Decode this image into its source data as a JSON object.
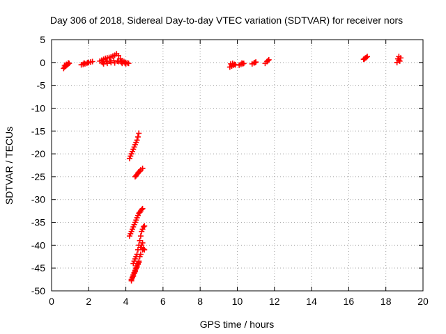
{
  "chart_data": {
    "type": "scatter",
    "title": "Day 306 of 2018, Sidereal Day-to-day VTEC variation (SDTVAR) for receiver nors",
    "xlabel": "GPS time / hours",
    "ylabel": "SDTVAR / TECUs",
    "xlim": [
      0,
      20
    ],
    "ylim": [
      -50,
      5
    ],
    "xticks": [
      "0",
      "2",
      "4",
      "6",
      "8",
      "10",
      "12",
      "14",
      "16",
      "18",
      "20"
    ],
    "yticks": [
      "5",
      "0",
      "-5",
      "-10",
      "-15",
      "-20",
      "-25",
      "-30",
      "-35",
      "-40",
      "-45",
      "-50"
    ],
    "grid": true,
    "marker": "plus",
    "point_color": "#ff0000",
    "series": [
      {
        "x": [
          0.65,
          0.7,
          0.75,
          0.8,
          0.85,
          0.9,
          0.95,
          0.7,
          0.8,
          0.9,
          1.6,
          1.7,
          1.8,
          1.9,
          2.0,
          2.1,
          2.2,
          1.75,
          1.95,
          2.6,
          2.7,
          2.8,
          2.9,
          3.0,
          3.1,
          3.2,
          3.3,
          3.4,
          3.5,
          3.6,
          3.7,
          3.8,
          3.9,
          4.0,
          4.1,
          4.15,
          2.75,
          2.95,
          3.15,
          3.35,
          3.55,
          3.75,
          3.95,
          2.8,
          3.0,
          3.2,
          3.4,
          3.6,
          3.8,
          4.0,
          4.2,
          4.3,
          4.4,
          4.5,
          4.6,
          4.7,
          4.25,
          4.35,
          4.45,
          4.55,
          4.65,
          4.5,
          4.6,
          4.7,
          4.8,
          4.9,
          4.55,
          4.65,
          4.75,
          4.2,
          4.3,
          4.4,
          4.5,
          4.6,
          4.7,
          4.8,
          4.9,
          4.25,
          4.35,
          4.45,
          4.55,
          4.65,
          4.75,
          4.85,
          4.4,
          4.5,
          4.6,
          4.7,
          4.8,
          4.9,
          5.0,
          4.45,
          4.55,
          4.65,
          4.75,
          4.85,
          4.95,
          4.3,
          4.4,
          4.5,
          4.6,
          4.7,
          4.8,
          4.9,
          4.35,
          4.45,
          4.55,
          4.65,
          4.75,
          4.8,
          4.85,
          4.9,
          4.95,
          5.0,
          4.3,
          4.35,
          4.4,
          4.45,
          4.5,
          4.55,
          4.6,
          4.65,
          4.7,
          9.6,
          9.7,
          9.8,
          9.9,
          9.65,
          9.75,
          9.85,
          10.1,
          10.2,
          10.3,
          10.35,
          10.25,
          10.8,
          10.9,
          11.0,
          10.95,
          11.5,
          11.6,
          11.7,
          11.65,
          16.8,
          16.9,
          17.0,
          16.95,
          16.85,
          18.6,
          18.7,
          18.8,
          18.65,
          18.75,
          18.7
        ],
        "y": [
          -1.3,
          -1.0,
          -0.8,
          -0.6,
          -0.5,
          -0.3,
          -0.2,
          -0.6,
          -0.4,
          -0.1,
          -0.5,
          -0.4,
          -0.3,
          -0.2,
          0.0,
          0.1,
          0.2,
          -0.1,
          0.0,
          0.3,
          0.5,
          0.7,
          0.9,
          1.0,
          1.1,
          1.2,
          1.4,
          1.6,
          1.9,
          1.5,
          0.8,
          0.4,
          0.2,
          0.0,
          -0.1,
          -0.2,
          0.0,
          0.2,
          0.3,
          0.4,
          0.3,
          0.1,
          -0.1,
          -0.3,
          -0.2,
          0.0,
          -0.1,
          0.2,
          -0.2,
          -0.3,
          -21.0,
          -20.0,
          -19.0,
          -18.0,
          -17.0,
          -15.5,
          -20.5,
          -19.5,
          -18.5,
          -17.5,
          -16.3,
          -25.0,
          -24.5,
          -24.0,
          -23.5,
          -23.2,
          -24.8,
          -24.2,
          -23.8,
          -38.0,
          -37.0,
          -36.0,
          -35.0,
          -34.0,
          -33.0,
          -32.5,
          -32.0,
          -37.5,
          -36.5,
          -35.5,
          -34.5,
          -33.5,
          -32.8,
          -32.2,
          -44.0,
          -43.0,
          -42.0,
          -40.0,
          -38.0,
          -36.5,
          -35.8,
          -43.5,
          -42.5,
          -41.0,
          -39.0,
          -37.0,
          -36.0,
          -47.5,
          -46.5,
          -45.5,
          -44.5,
          -43.5,
          -42.0,
          -41.0,
          -47.0,
          -46.0,
          -45.0,
          -44.0,
          -42.5,
          -40.5,
          -40.0,
          -39.5,
          -40.8,
          -41.0,
          -47.8,
          -47.2,
          -46.8,
          -46.2,
          -45.8,
          -45.2,
          -44.8,
          -44.2,
          -43.8,
          -1.0,
          -0.8,
          -0.6,
          -0.5,
          -0.3,
          -0.2,
          -0.4,
          -0.6,
          -0.4,
          -0.3,
          -0.2,
          -0.1,
          -0.3,
          -0.1,
          0.1,
          0.0,
          -0.2,
          0.2,
          0.6,
          0.4,
          0.7,
          1.0,
          1.3,
          1.1,
          0.8,
          0.0,
          0.5,
          1.0,
          0.8,
          0.3,
          1.3
        ]
      }
    ]
  }
}
